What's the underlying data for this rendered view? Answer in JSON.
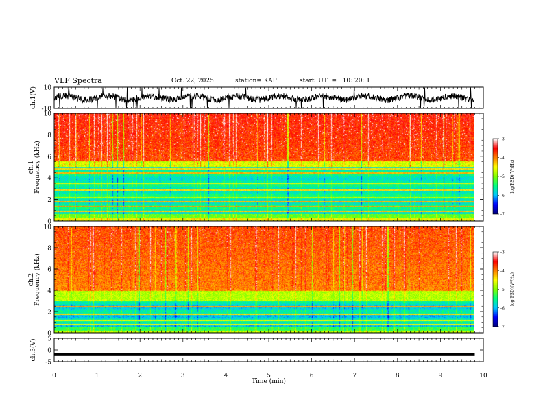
{
  "header": {
    "title": "VLF Spectra",
    "date": "Oct. 22, 2025",
    "station": "station= KAP",
    "start": "start  UT  =   10: 20: 1"
  },
  "chart_data": {
    "type": "heatmap",
    "title": "VLF Spectra",
    "xlabel": "Time  (min)",
    "xlim": [
      0,
      10
    ],
    "x_ticks": [
      "0",
      "1",
      "2",
      "3",
      "4",
      "5",
      "6",
      "7",
      "8",
      "9",
      "10"
    ],
    "colors": {
      "scale": [
        "#000080",
        "#0000ff",
        "#00c8ff",
        "#00ff80",
        "#80ff00",
        "#ffff00",
        "#ff8000",
        "#ff0000",
        "#ffffff"
      ],
      "trace": "#000000"
    },
    "colorbar": {
      "label": "log(PSD)(V²/Hz)",
      "range": [
        -7,
        -3
      ],
      "ticks": [
        "-3",
        "-4",
        "-5",
        "-6",
        "-7"
      ]
    },
    "panels": [
      {
        "name": "ch1-waveform",
        "type": "line",
        "ylabel": "ch.1(V)",
        "ylim": [
          -10,
          10
        ],
        "y_ticks": [
          "10",
          "-10"
        ],
        "data_end_min": 9.8
      },
      {
        "name": "ch1-spectrogram",
        "type": "heatmap",
        "ylabel": "ch.1",
        "ylabel2": "Frequency  (kHz)",
        "ylim": [
          0,
          10
        ],
        "y_ticks": [
          "0",
          "2",
          "4",
          "6",
          "8",
          "10"
        ],
        "data_end_min": 9.8
      },
      {
        "name": "ch2-spectrogram",
        "type": "heatmap",
        "ylabel": "ch.2",
        "ylabel2": "Frequency  (kHz)",
        "ylim": [
          0,
          10
        ],
        "y_ticks": [
          "0",
          "2",
          "4",
          "6",
          "8",
          "10"
        ],
        "data_end_min": 9.8
      },
      {
        "name": "ch3-waveform",
        "type": "line",
        "ylabel": "ch.3(V)",
        "ylim": [
          -5,
          5
        ],
        "y_ticks": [
          "5",
          "0",
          "-5"
        ],
        "data_end_min": 9.8
      }
    ]
  }
}
